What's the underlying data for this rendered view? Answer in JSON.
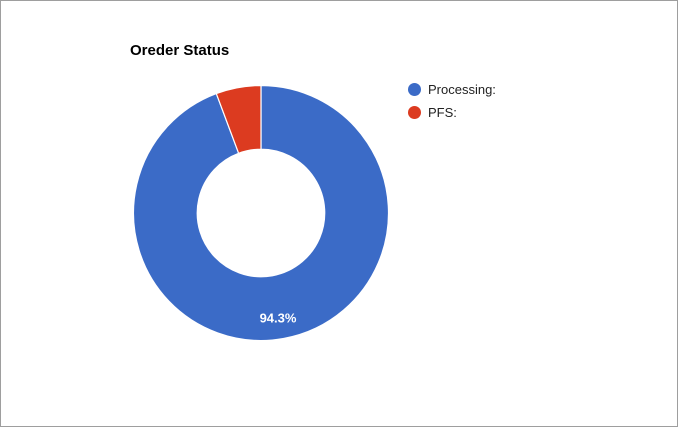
{
  "window": {
    "background": "#ffffff",
    "frame_border_color": "#9e9e9e"
  },
  "chart_data": {
    "type": "pie",
    "title": "Oreder Status",
    "categories": [
      "Processing:",
      "PFS:"
    ],
    "values": [
      94.3,
      5.7
    ],
    "colors": [
      "#3b6bc7",
      "#dc3b20"
    ],
    "donut": true,
    "hole_ratio": 0.5,
    "start_angle_deg": 0,
    "direction": "clockwise",
    "visible_slice_labels": [
      "94.3%",
      ""
    ],
    "slice_label_color": "#ffffff",
    "legend_position": "right",
    "legend_text_color": "#222222",
    "title_color": "#000000"
  }
}
